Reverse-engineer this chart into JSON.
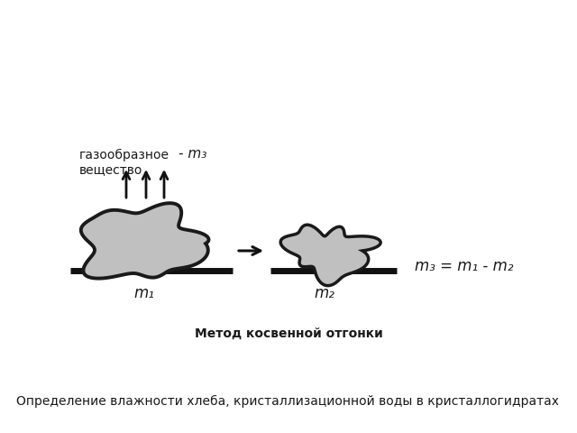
{
  "background_color": "#ffffff",
  "title_text": "Метод косвенной отгонки",
  "title_fontsize": 10,
  "subtitle_text": "Определение влажности хлеба, кристаллизационной воды в кристаллогидратах",
  "subtitle_fontsize": 10,
  "label_gas": "газообразное\nвещество",
  "label_minus_m3": "- m₃",
  "label_m1": "m₁",
  "label_m2": "m₂",
  "label_formula": "m₃ = m₁ - m₂",
  "blob_color": "#c0c0c0",
  "blob_edge_color": "#1a1a1a",
  "plate_color": "#111111",
  "arrow_color": "#111111",
  "text_color": "#1a1a1a"
}
